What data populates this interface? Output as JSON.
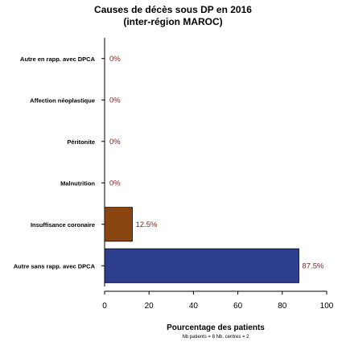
{
  "chart_data": {
    "type": "bar",
    "orientation": "horizontal",
    "title_lines": [
      "Causes de décès sous DP en 2016",
      "(inter-région MAROC)"
    ],
    "categories": [
      "Autre en rapp. avec DPCA",
      "Affection néoplastique",
      "Péritonite",
      "Malnutrition",
      "Insuffisance coronaire",
      "Autre sans rapp. avec DPCA"
    ],
    "values": [
      0,
      0,
      0,
      0,
      12.5,
      87.5
    ],
    "value_labels": [
      "0%",
      "0%",
      "0%",
      "0%",
      "12.5%",
      "87.5%"
    ],
    "bar_colors": [
      "#2e3f8f",
      "#2e3f8f",
      "#2e3f8f",
      "#2e3f8f",
      "#8b4510",
      "#2e3f8f"
    ],
    "xlabel": "Pourcentage des patients",
    "xlim": [
      0,
      100
    ],
    "xticks": [
      0,
      20,
      40,
      60,
      80,
      100
    ],
    "grid": false,
    "legend": "none",
    "footnote": "Nb patients = 8     Nb. centres = 2"
  }
}
